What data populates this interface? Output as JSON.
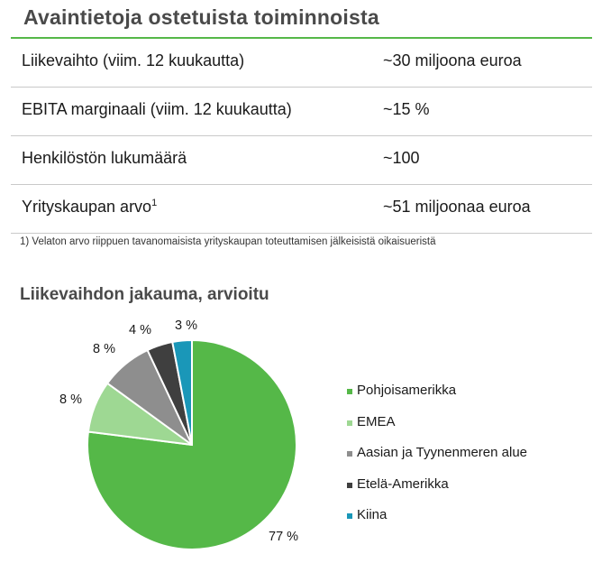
{
  "header": {
    "title": "Avaintietoja ostetuista toiminnoista"
  },
  "key_facts": [
    {
      "label": "Liikevaihto (viim. 12 kuukautta)",
      "sup": "",
      "value": "~30 miljoona euroa"
    },
    {
      "label": "EBITA marginaali (viim. 12 kuukautta)",
      "sup": "",
      "value": "~15 %"
    },
    {
      "label": "Henkilöstön lukumäärä",
      "sup": "",
      "value": "~100"
    },
    {
      "label": "Yrityskaupan arvo",
      "sup": "1",
      "value": "~51 miljoonaa euroa"
    }
  ],
  "footnote": "1) Velaton arvo riippuen tavanomaisista yrityskaupan toteuttamisen jälkeisistä oikaisueristä",
  "chart_data": {
    "type": "pie",
    "title": "Liikevaihdon jakauma, arvioitu",
    "legend_position": "right",
    "slices": [
      {
        "name": "Pohjoisamerikka",
        "value": 77,
        "label": "77 %",
        "color": "#55b848"
      },
      {
        "name": "EMEA",
        "value": 8,
        "label": "8 %",
        "color": "#9ed893"
      },
      {
        "name": "Aasian ja Tyynenmeren alue",
        "value": 8,
        "label": "8 %",
        "color": "#8e8e8e"
      },
      {
        "name": "Etelä-Amerikka",
        "value": 4,
        "label": "4 %",
        "color": "#3f3f3f"
      },
      {
        "name": "Kiina",
        "value": 3,
        "label": "3 %",
        "color": "#1a97b8"
      }
    ]
  }
}
